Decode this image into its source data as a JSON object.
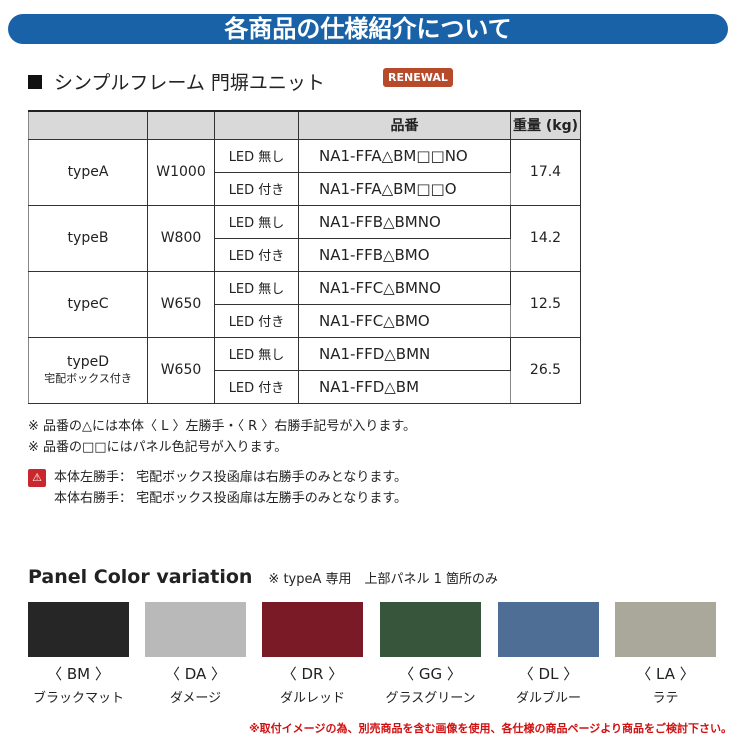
{
  "banner": "各商品の仕様紹介について",
  "section": {
    "title": "シンプルフレーム 門塀ユニット",
    "badge": "RENEWAL"
  },
  "table": {
    "headers": {
      "part_no": "品番",
      "weight": "重量 (kg)"
    },
    "groups": [
      {
        "type": "typeA",
        "sub": "",
        "width": "W1000",
        "rows": [
          {
            "led": "LED 無し",
            "part": "NA1-FFA△BM□□NO"
          },
          {
            "led": "LED 付き",
            "part": "NA1-FFA△BM□□O"
          }
        ],
        "weight": "17.4"
      },
      {
        "type": "typeB",
        "sub": "",
        "width": "W800",
        "rows": [
          {
            "led": "LED 無し",
            "part": "NA1-FFB△BMNO"
          },
          {
            "led": "LED 付き",
            "part": "NA1-FFB△BMO"
          }
        ],
        "weight": "14.2"
      },
      {
        "type": "typeC",
        "sub": "",
        "width": "W650",
        "rows": [
          {
            "led": "LED 無し",
            "part": "NA1-FFC△BMNO"
          },
          {
            "led": "LED 付き",
            "part": "NA1-FFC△BMO"
          }
        ],
        "weight": "12.5"
      },
      {
        "type": "typeD",
        "sub": "宅配ボックス付き",
        "width": "W650",
        "rows": [
          {
            "led": "LED 無し",
            "part": "NA1-FFD△BMN"
          },
          {
            "led": "LED 付き",
            "part": "NA1-FFD△BM"
          }
        ],
        "weight": "26.5"
      }
    ]
  },
  "notes": [
    "※ 品番の△には本体〈 L 〉左勝手・〈 R 〉右勝手記号が入ります。",
    "※ 品番の□□にはパネル色記号が入ります。"
  ],
  "warnings": [
    "本体左勝手： 宅配ボックス投函扉は右勝手のみとなります。",
    "本体右勝手： 宅配ボックス投函扉は左勝手のみとなります。"
  ],
  "warning_icon": "warning-triangle-icon",
  "panel": {
    "title": "Panel Color variation",
    "note": "※ typeA 専用　上部パネル 1 箇所のみ",
    "colors": [
      {
        "code": "〈 BM 〉",
        "name": "ブラックマット",
        "hex": "#262626"
      },
      {
        "code": "〈 DA 〉",
        "name": "ダメージ",
        "hex": "#b9b9b9"
      },
      {
        "code": "〈 DR 〉",
        "name": "ダルレッド",
        "hex": "#7a1a27"
      },
      {
        "code": "〈 GG 〉",
        "name": "グラスグリーン",
        "hex": "#37553b"
      },
      {
        "code": "〈 DL 〉",
        "name": "ダルブルー",
        "hex": "#4f6e96"
      },
      {
        "code": "〈 LA 〉",
        "name": "ラテ",
        "hex": "#aaa79b"
      }
    ]
  },
  "footer": "※取付イメージの為、別売商品を含む画像を使用、各仕様の商品ページより商品をご検討下さい。"
}
